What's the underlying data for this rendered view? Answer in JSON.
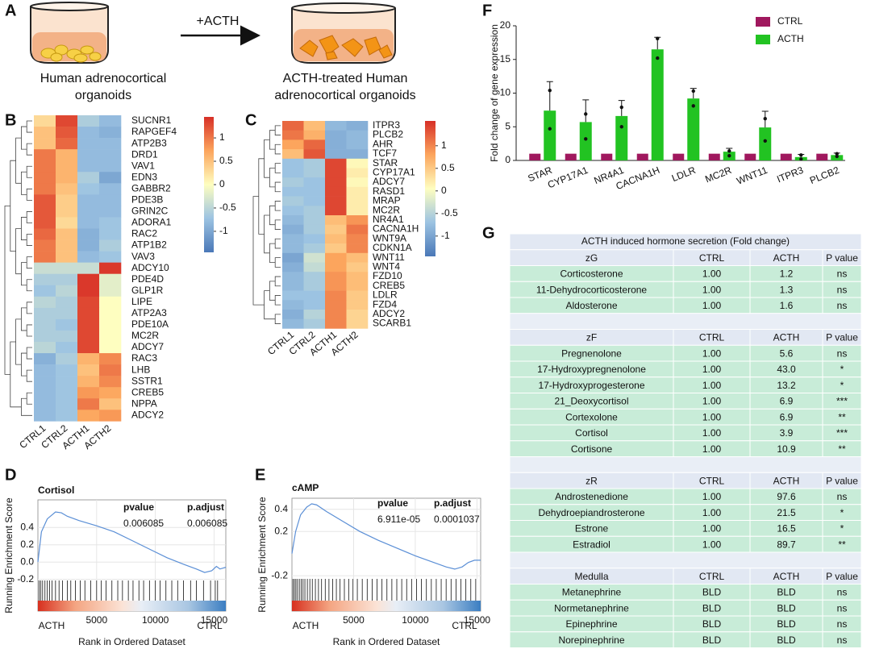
{
  "panel_a": {
    "label": "A",
    "treatment": "+ACTH",
    "left_caption": [
      "Human adrenocortical",
      "organoids"
    ],
    "right_caption": [
      "ACTH-treated Human",
      "adrenocortical organoids"
    ]
  },
  "chart_data": [
    {
      "label": "B",
      "type": "heatmap",
      "rows": [
        "SUCNR1",
        "RAPGEF4",
        "ATP2B3",
        "DRD1",
        "VAV1",
        "EDN3",
        "GABBR2",
        "PDE3B",
        "GRIN2C",
        "ADORA1",
        "RAC2",
        "ATP1B2",
        "VAV3",
        "ADCY10",
        "PDE4D",
        "GLP1R",
        "LIPE",
        "ATP2A3",
        "PDE10A",
        "MC2R",
        "ADCY7",
        "RAC3",
        "LHB",
        "SSTR1",
        "CREB5",
        "NPPA",
        "ADCY2"
      ],
      "columns": [
        "CTRL1",
        "CTRL2",
        "ACTH1",
        "ACTH2"
      ],
      "values": [
        [
          0.3,
          1.3,
          -0.6,
          -0.8
        ],
        [
          0.5,
          1.2,
          -0.8,
          -0.9
        ],
        [
          0.5,
          1.1,
          -0.8,
          -0.8
        ],
        [
          1.0,
          0.6,
          -0.8,
          -0.8
        ],
        [
          1.0,
          0.6,
          -0.8,
          -0.8
        ],
        [
          1.0,
          0.6,
          -0.6,
          -1.0
        ],
        [
          1.0,
          0.5,
          -0.7,
          -0.8
        ],
        [
          1.2,
          0.4,
          -0.8,
          -0.8
        ],
        [
          1.2,
          0.4,
          -0.8,
          -0.8
        ],
        [
          1.2,
          0.3,
          -0.8,
          -0.7
        ],
        [
          1.1,
          0.5,
          -0.9,
          -0.7
        ],
        [
          1.0,
          0.5,
          -0.9,
          -0.6
        ],
        [
          1.0,
          0.5,
          -0.8,
          -0.7
        ],
        [
          -0.4,
          -0.4,
          -0.4,
          1.4
        ],
        [
          -0.6,
          -0.6,
          1.4,
          -0.2
        ],
        [
          -0.7,
          -0.5,
          1.4,
          -0.2
        ],
        [
          -0.5,
          -0.6,
          1.3,
          0.0
        ],
        [
          -0.6,
          -0.6,
          1.3,
          0.0
        ],
        [
          -0.6,
          -0.7,
          1.3,
          0.0
        ],
        [
          -0.6,
          -0.6,
          1.3,
          0.0
        ],
        [
          -0.5,
          -0.7,
          1.3,
          0.0
        ],
        [
          -0.9,
          -0.6,
          0.6,
          0.9
        ],
        [
          -0.8,
          -0.7,
          0.5,
          1.0
        ],
        [
          -0.8,
          -0.7,
          0.6,
          0.9
        ],
        [
          -0.8,
          -0.7,
          0.8,
          0.7
        ],
        [
          -0.8,
          -0.7,
          1.0,
          0.5
        ],
        [
          -0.8,
          -0.7,
          0.7,
          0.8
        ]
      ],
      "clim": [
        -1.45,
        1.45
      ],
      "colorbar_ticks": [
        1,
        0.5,
        0,
        -0.5,
        -1
      ],
      "colors": [
        "#4a78b8",
        "#9cc3e2",
        "#fefec0",
        "#fca55d",
        "#d73027"
      ]
    },
    {
      "label": "C",
      "type": "heatmap",
      "rows": [
        "ITPR3",
        "PLCB2",
        "AHR",
        "TCF7",
        "STAR",
        "CYP17A1",
        "ADCY7",
        "RASD1",
        "MRAP",
        "MC2R",
        "NR4A1",
        "CACNA1H",
        "WNT9A",
        "CDKN1A",
        "WNT11",
        "WNT4",
        "FZD10",
        "CREB5",
        "LDLR",
        "FZD4",
        "ADCY2",
        "SCARB1"
      ],
      "columns": [
        "CTRL1",
        "CTRL2",
        "ACTH1",
        "ACTH2"
      ],
      "values": [
        [
          1.2,
          0.6,
          -0.8,
          -0.9
        ],
        [
          1.1,
          0.7,
          -0.9,
          -0.8
        ],
        [
          0.8,
          1.2,
          -0.9,
          -0.8
        ],
        [
          0.6,
          1.3,
          -0.9,
          -0.9
        ],
        [
          -0.7,
          -0.6,
          1.4,
          0.1
        ],
        [
          -0.7,
          -0.6,
          1.4,
          0.2
        ],
        [
          -0.6,
          -0.7,
          1.4,
          0.1
        ],
        [
          -0.7,
          -0.7,
          1.4,
          0.2
        ],
        [
          -0.6,
          -0.7,
          1.4,
          0.2
        ],
        [
          -0.7,
          -0.6,
          1.4,
          0.2
        ],
        [
          -0.8,
          -0.6,
          0.6,
          0.9
        ],
        [
          -0.9,
          -0.6,
          0.5,
          1.1
        ],
        [
          -0.8,
          -0.7,
          0.6,
          1.0
        ],
        [
          -0.8,
          -0.6,
          0.5,
          1.0
        ],
        [
          -1.0,
          -0.3,
          0.8,
          0.6
        ],
        [
          -0.9,
          -0.4,
          0.8,
          0.5
        ],
        [
          -0.8,
          -0.6,
          0.9,
          0.6
        ],
        [
          -0.8,
          -0.6,
          0.9,
          0.6
        ],
        [
          -0.7,
          -0.7,
          1.0,
          0.5
        ],
        [
          -0.8,
          -0.7,
          1.0,
          0.5
        ],
        [
          -0.9,
          -0.5,
          1.0,
          0.4
        ],
        [
          -0.8,
          -0.6,
          1.0,
          0.4
        ]
      ],
      "clim": [
        -1.45,
        1.55
      ],
      "colorbar_ticks": [
        1,
        0.5,
        0,
        -0.5,
        -1
      ],
      "colors": [
        "#4a78b8",
        "#9cc3e2",
        "#fefec0",
        "#fca55d",
        "#d73027"
      ]
    },
    {
      "label": "D",
      "type": "gsea",
      "title": "Cortisol",
      "stats_headers": [
        "pvalue",
        "p.adjust"
      ],
      "stats": [
        "0.006085",
        "0.006085"
      ],
      "ylabel": "Running Enrichment Score",
      "xlabel": "Rank in Ordered Dataset",
      "end_labels": [
        "ACTH",
        "CTRL"
      ],
      "color": "#5b8fd6",
      "x": [
        0,
        300,
        800,
        1500,
        2000,
        2500,
        3500,
        5000,
        6500,
        8000,
        9500,
        11000,
        12500,
        13500,
        14200,
        14800,
        15200,
        15500,
        16000
      ],
      "values": [
        0,
        0.35,
        0.5,
        0.58,
        0.57,
        0.53,
        0.48,
        0.42,
        0.35,
        0.25,
        0.15,
        0.05,
        -0.03,
        -0.08,
        -0.12,
        -0.1,
        -0.05,
        -0.08,
        -0.06
      ],
      "hits": [
        100,
        250,
        400,
        600,
        800,
        1000,
        1200,
        1500,
        1800,
        2100,
        2500,
        2800,
        3200,
        3600,
        4000,
        4500,
        5000,
        5400,
        5800,
        6300,
        6800,
        7200,
        7700,
        8100,
        8600,
        9000,
        9500,
        10000,
        10400,
        10900,
        11400,
        11900,
        12400,
        13000,
        13500,
        14100,
        14700,
        15100,
        15300
      ],
      "xlim": [
        0,
        16000
      ],
      "ylim": [
        -0.25,
        0.72
      ],
      "xticks": [
        5000,
        10000,
        15000
      ],
      "yticks": [
        0.4,
        0.2,
        {
          "value": 0,
          "label": "0.0"
        },
        -0.2
      ]
    },
    {
      "label": "E",
      "type": "gsea",
      "title": "cAMP",
      "stats_headers": [
        "pvalue",
        "p.adjust"
      ],
      "stats": [
        "6.911e-05",
        "0.0001037"
      ],
      "ylabel": "Running Enrichment Score",
      "xlabel": "Rank in Ordered Dataset",
      "end_labels": [
        "ACTH",
        "CTRL"
      ],
      "color": "#5b8fd6",
      "x": [
        0,
        300,
        700,
        1200,
        1600,
        2000,
        2800,
        4000,
        5500,
        7000,
        8500,
        10000,
        11500,
        12500,
        13200,
        13800,
        14300,
        14800,
        15300
      ],
      "values": [
        0,
        0.2,
        0.35,
        0.42,
        0.45,
        0.44,
        0.38,
        0.3,
        0.2,
        0.12,
        0.05,
        -0.02,
        -0.08,
        -0.12,
        -0.14,
        -0.12,
        -0.08,
        -0.06,
        -0.06
      ],
      "hits": [
        80,
        200,
        320,
        450,
        600,
        750,
        900,
        1050,
        1250,
        1450,
        1650,
        1900,
        2150,
        2400,
        2700,
        3000,
        3300,
        3600,
        3900,
        4250,
        4600,
        4950,
        5300,
        5700,
        6100,
        6500,
        6900,
        7300,
        7700,
        8100,
        8500,
        8900,
        9300,
        9700,
        10100,
        10500,
        10900,
        11300,
        11700,
        12100,
        12500,
        12900,
        13300,
        13700,
        14100,
        14500,
        14900
      ],
      "xlim": [
        0,
        15300
      ],
      "ylim": [
        -0.25,
        0.5
      ],
      "xticks": [
        5000,
        10000,
        15000
      ],
      "yticks": [
        0.4,
        0.2,
        -0.2
      ]
    },
    {
      "label": "F",
      "type": "bar",
      "ylabel": "Fold change of gene expression",
      "categories": [
        "STAR",
        "CYP17A1",
        "NR4A1",
        "CACNA1H",
        "LDLR",
        "MC2R",
        "WNT11",
        "ITPR3",
        "PLCB2"
      ],
      "series": [
        {
          "name": "CTRL",
          "color": "#a0185e",
          "values": [
            1,
            1,
            1,
            1,
            1,
            1,
            1,
            1,
            1
          ]
        },
        {
          "name": "ACTH",
          "color": "#22c322",
          "values": [
            7.4,
            5.7,
            6.6,
            16.5,
            9.2,
            1.3,
            4.9,
            0.5,
            0.8
          ],
          "errors": [
            4.3,
            3.3,
            2.3,
            1.8,
            1.5,
            0.5,
            2.4,
            0.4,
            0.3
          ],
          "points": [
            [
              10.4,
              4.7
            ],
            [
              6.9,
              3.2
            ],
            [
              7.9,
              5.0
            ],
            [
              18.1,
              15.2
            ],
            [
              10.3,
              8.1
            ],
            [
              1.4,
              0.7
            ],
            [
              6.2,
              2.9
            ],
            [
              0.8,
              0.2
            ],
            [
              1.0,
              0.6
            ]
          ]
        }
      ],
      "ylim": [
        0,
        20
      ],
      "yticks": [
        0,
        5,
        10,
        15,
        20
      ],
      "legend": "upper right"
    }
  ],
  "table": {
    "label": "G",
    "title": "ACTH induced hormone secretion (Fold change)",
    "sections": [
      {
        "header": [
          "zG",
          "CTRL",
          "ACTH",
          "P value"
        ],
        "rows": [
          [
            "Corticosterone",
            "1.00",
            "1.2",
            "ns"
          ],
          [
            "11-Dehydrocorticosterone",
            "1.00",
            "1.3",
            "ns"
          ],
          [
            "Aldosterone",
            "1.00",
            "1.6",
            "ns"
          ]
        ]
      },
      {
        "header": [
          "zF",
          "CTRL",
          "ACTH",
          "P value"
        ],
        "rows": [
          [
            "Pregnenolone",
            "1.00",
            "5.6",
            "ns"
          ],
          [
            "17-Hydroxypregnenolone",
            "1.00",
            "43.0",
            "*"
          ],
          [
            "17-Hydroxyprogesterone",
            "1.00",
            "13.2",
            "*"
          ],
          [
            "21_Deoxycortisol",
            "1.00",
            "6.9",
            "***"
          ],
          [
            "Cortexolone",
            "1.00",
            "6.9",
            "**"
          ],
          [
            "Cortisol",
            "1.00",
            "3.9",
            "***"
          ],
          [
            "Cortisone",
            "1.00",
            "10.9",
            "**"
          ]
        ]
      },
      {
        "header": [
          "zR",
          "CTRL",
          "ACTH",
          "P value"
        ],
        "rows": [
          [
            "Androstenedione",
            "1.00",
            "97.6",
            "ns"
          ],
          [
            "Dehydroepiandrosterone",
            "1.00",
            "21.5",
            "*"
          ],
          [
            "Estrone",
            "1.00",
            "16.5",
            "*"
          ],
          [
            "Estradiol",
            "1.00",
            "89.7",
            "**"
          ]
        ]
      },
      {
        "header": [
          "Medulla",
          "CTRL",
          "ACTH",
          "P value"
        ],
        "rows": [
          [
            "Metanephrine",
            "BLD",
            "BLD",
            "ns"
          ],
          [
            "Normetanephrine",
            "BLD",
            "BLD",
            "ns"
          ],
          [
            "Epinephrine",
            "BLD",
            "BLD",
            "ns"
          ],
          [
            "Norepinephrine",
            "BLD",
            "BLD",
            "ns"
          ]
        ]
      }
    ]
  }
}
